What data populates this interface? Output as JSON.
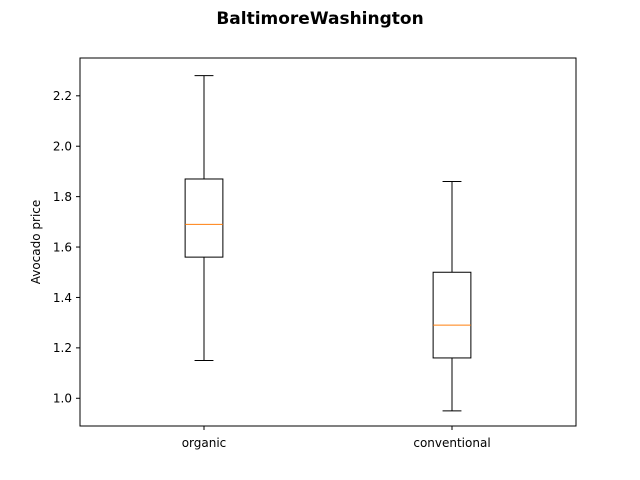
{
  "chart_data": {
    "type": "boxplot",
    "title": "BaltimoreWashington",
    "xlabel": "",
    "ylabel": "Avocado price",
    "ylim": [
      0.89,
      2.35
    ],
    "yticks": [
      1.0,
      1.2,
      1.4,
      1.6,
      1.8,
      2.0,
      2.2
    ],
    "ytick_labels": [
      "1.0",
      "1.2",
      "1.4",
      "1.6",
      "1.8",
      "2.0",
      "2.2"
    ],
    "categories": [
      "organic",
      "conventional"
    ],
    "boxes": [
      {
        "category": "organic",
        "whisker_low": 1.15,
        "q1": 1.56,
        "median": 1.69,
        "q3": 1.87,
        "whisker_high": 2.28
      },
      {
        "category": "conventional",
        "whisker_low": 0.95,
        "q1": 1.16,
        "median": 1.29,
        "q3": 1.5,
        "whisker_high": 1.86
      }
    ],
    "grid": false,
    "colors": {
      "box": "#000000",
      "median": "#ff7f0e"
    }
  }
}
